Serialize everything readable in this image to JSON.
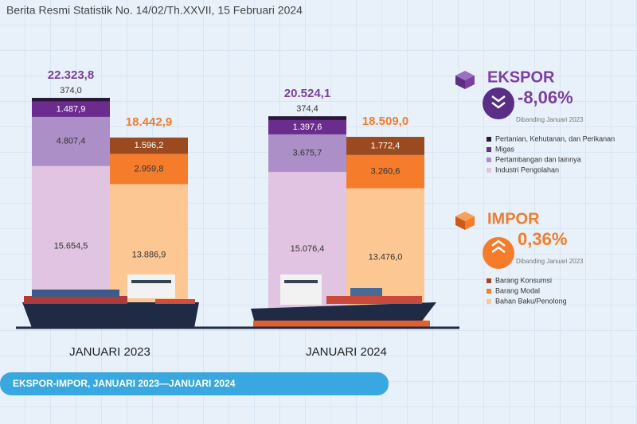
{
  "chart_data": {
    "type": "bar",
    "stacked": true,
    "title": "Berita Resmi Statistik No. 14/02/Th.XXVII, 15 Februari 2024",
    "subtitle": "EKSPOR-IMPOR, JANUARI 2023—JANUARI 2024",
    "categories": [
      "JANUARI 2023",
      "JANUARI 2024"
    ],
    "stacks": [
      {
        "name": "EKSPOR",
        "color": "#7b3fa0",
        "totals": [
          22323.8,
          20524.1
        ],
        "total_labels": [
          "22.323,8",
          "20.524,1"
        ],
        "change": -8.06,
        "change_label": "-8,06%",
        "note": "Dibanding Januari 2023"
      },
      {
        "name": "IMPOR",
        "color": "#f47c2b",
        "totals": [
          18442.9,
          18509.0
        ],
        "total_labels": [
          "18.442,9",
          "18.509,0"
        ],
        "change": 0.36,
        "change_label": "0,36%",
        "note": "Dibanding Januari 2023"
      }
    ],
    "series": [
      {
        "name": "Pertanian, Kehutanan, dan Perikanan",
        "stack": 0,
        "color": "#2b1838",
        "values": [
          374.0,
          374.4
        ],
        "value_labels": [
          "374,0",
          "374,4"
        ]
      },
      {
        "name": "Migas",
        "stack": 0,
        "color": "#6a2d8e",
        "values": [
          1487.9,
          1397.6
        ],
        "value_labels": [
          "1.487,9",
          "1.397,6"
        ]
      },
      {
        "name": "Pertambangan dan lainnya",
        "stack": 0,
        "color": "#ab8fc6",
        "values": [
          4807.4,
          3675.7
        ],
        "value_labels": [
          "4.807,4",
          "3.675,7"
        ]
      },
      {
        "name": "Industri Pengolahan",
        "stack": 0,
        "color": "#e0c4e1",
        "values": [
          15654.5,
          15076.4
        ],
        "value_labels": [
          "15.654,5",
          "15.076,4"
        ]
      },
      {
        "name": "Barang Konsumsi",
        "stack": 1,
        "color": "#9a4a1e",
        "values": [
          1596.2,
          1772.4
        ],
        "value_labels": [
          "1.596,2",
          "1.772,4"
        ]
      },
      {
        "name": "Barang Modal",
        "stack": 1,
        "color": "#f47c2b",
        "values": [
          2959.8,
          3260.6
        ],
        "value_labels": [
          "2.959,8",
          "3.260,6"
        ]
      },
      {
        "name": "Bahan Baku/Penolong",
        "stack": 1,
        "color": "#fcc793",
        "values": [
          13886.9,
          13476.0
        ],
        "value_labels": [
          "13.886,9",
          "13.476,0"
        ]
      }
    ]
  }
}
